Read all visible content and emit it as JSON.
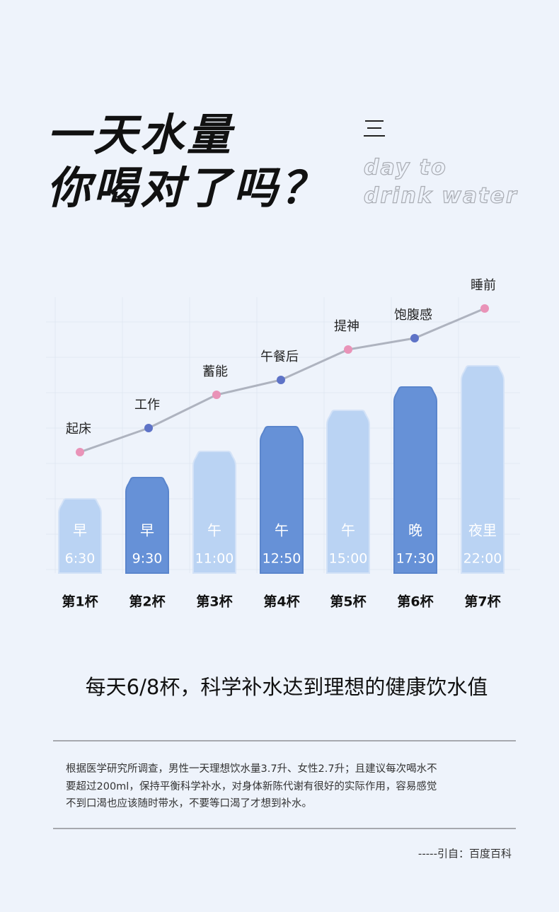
{
  "header": {
    "title_lines": [
      "一天水量",
      "你喝对了吗？"
    ],
    "english_lines": [
      "day to",
      "drink water"
    ]
  },
  "cups": [
    {
      "note": "起床",
      "period": "早",
      "time": "6:30",
      "label": "第1杯"
    },
    {
      "note": "工作",
      "period": "早",
      "time": "9:30",
      "label": "第2杯"
    },
    {
      "note": "蓄能",
      "period": "午",
      "time": "11:00",
      "label": "第3杯"
    },
    {
      "note": "午餐后",
      "period": "午",
      "time": "12:50",
      "label": "第4杯"
    },
    {
      "note": "提神",
      "period": "午",
      "time": "15:00",
      "label": "第5杯"
    },
    {
      "note": "饱腹感",
      "period": "晚",
      "time": "17:30",
      "label": "第6杯"
    },
    {
      "note": "睡前",
      "period": "夜里",
      "time": "22:00",
      "label": "第7杯"
    }
  ],
  "tagline": "每天6/8杯，科学补水达到理想的健康饮水值",
  "paragraph_lines": [
    "根据医学研究所调查，男性一天理想饮水量3.7升、女性2.7升；且建议每次喝水不",
    "要超过200ml，保持平衡科学补水，对身体新陈代谢有很好的实际作用，容易感觉",
    "不到口渴也应该随时带水，不要等口渴了才想到补水。"
  ],
  "source": "-----引自：百度百科"
}
